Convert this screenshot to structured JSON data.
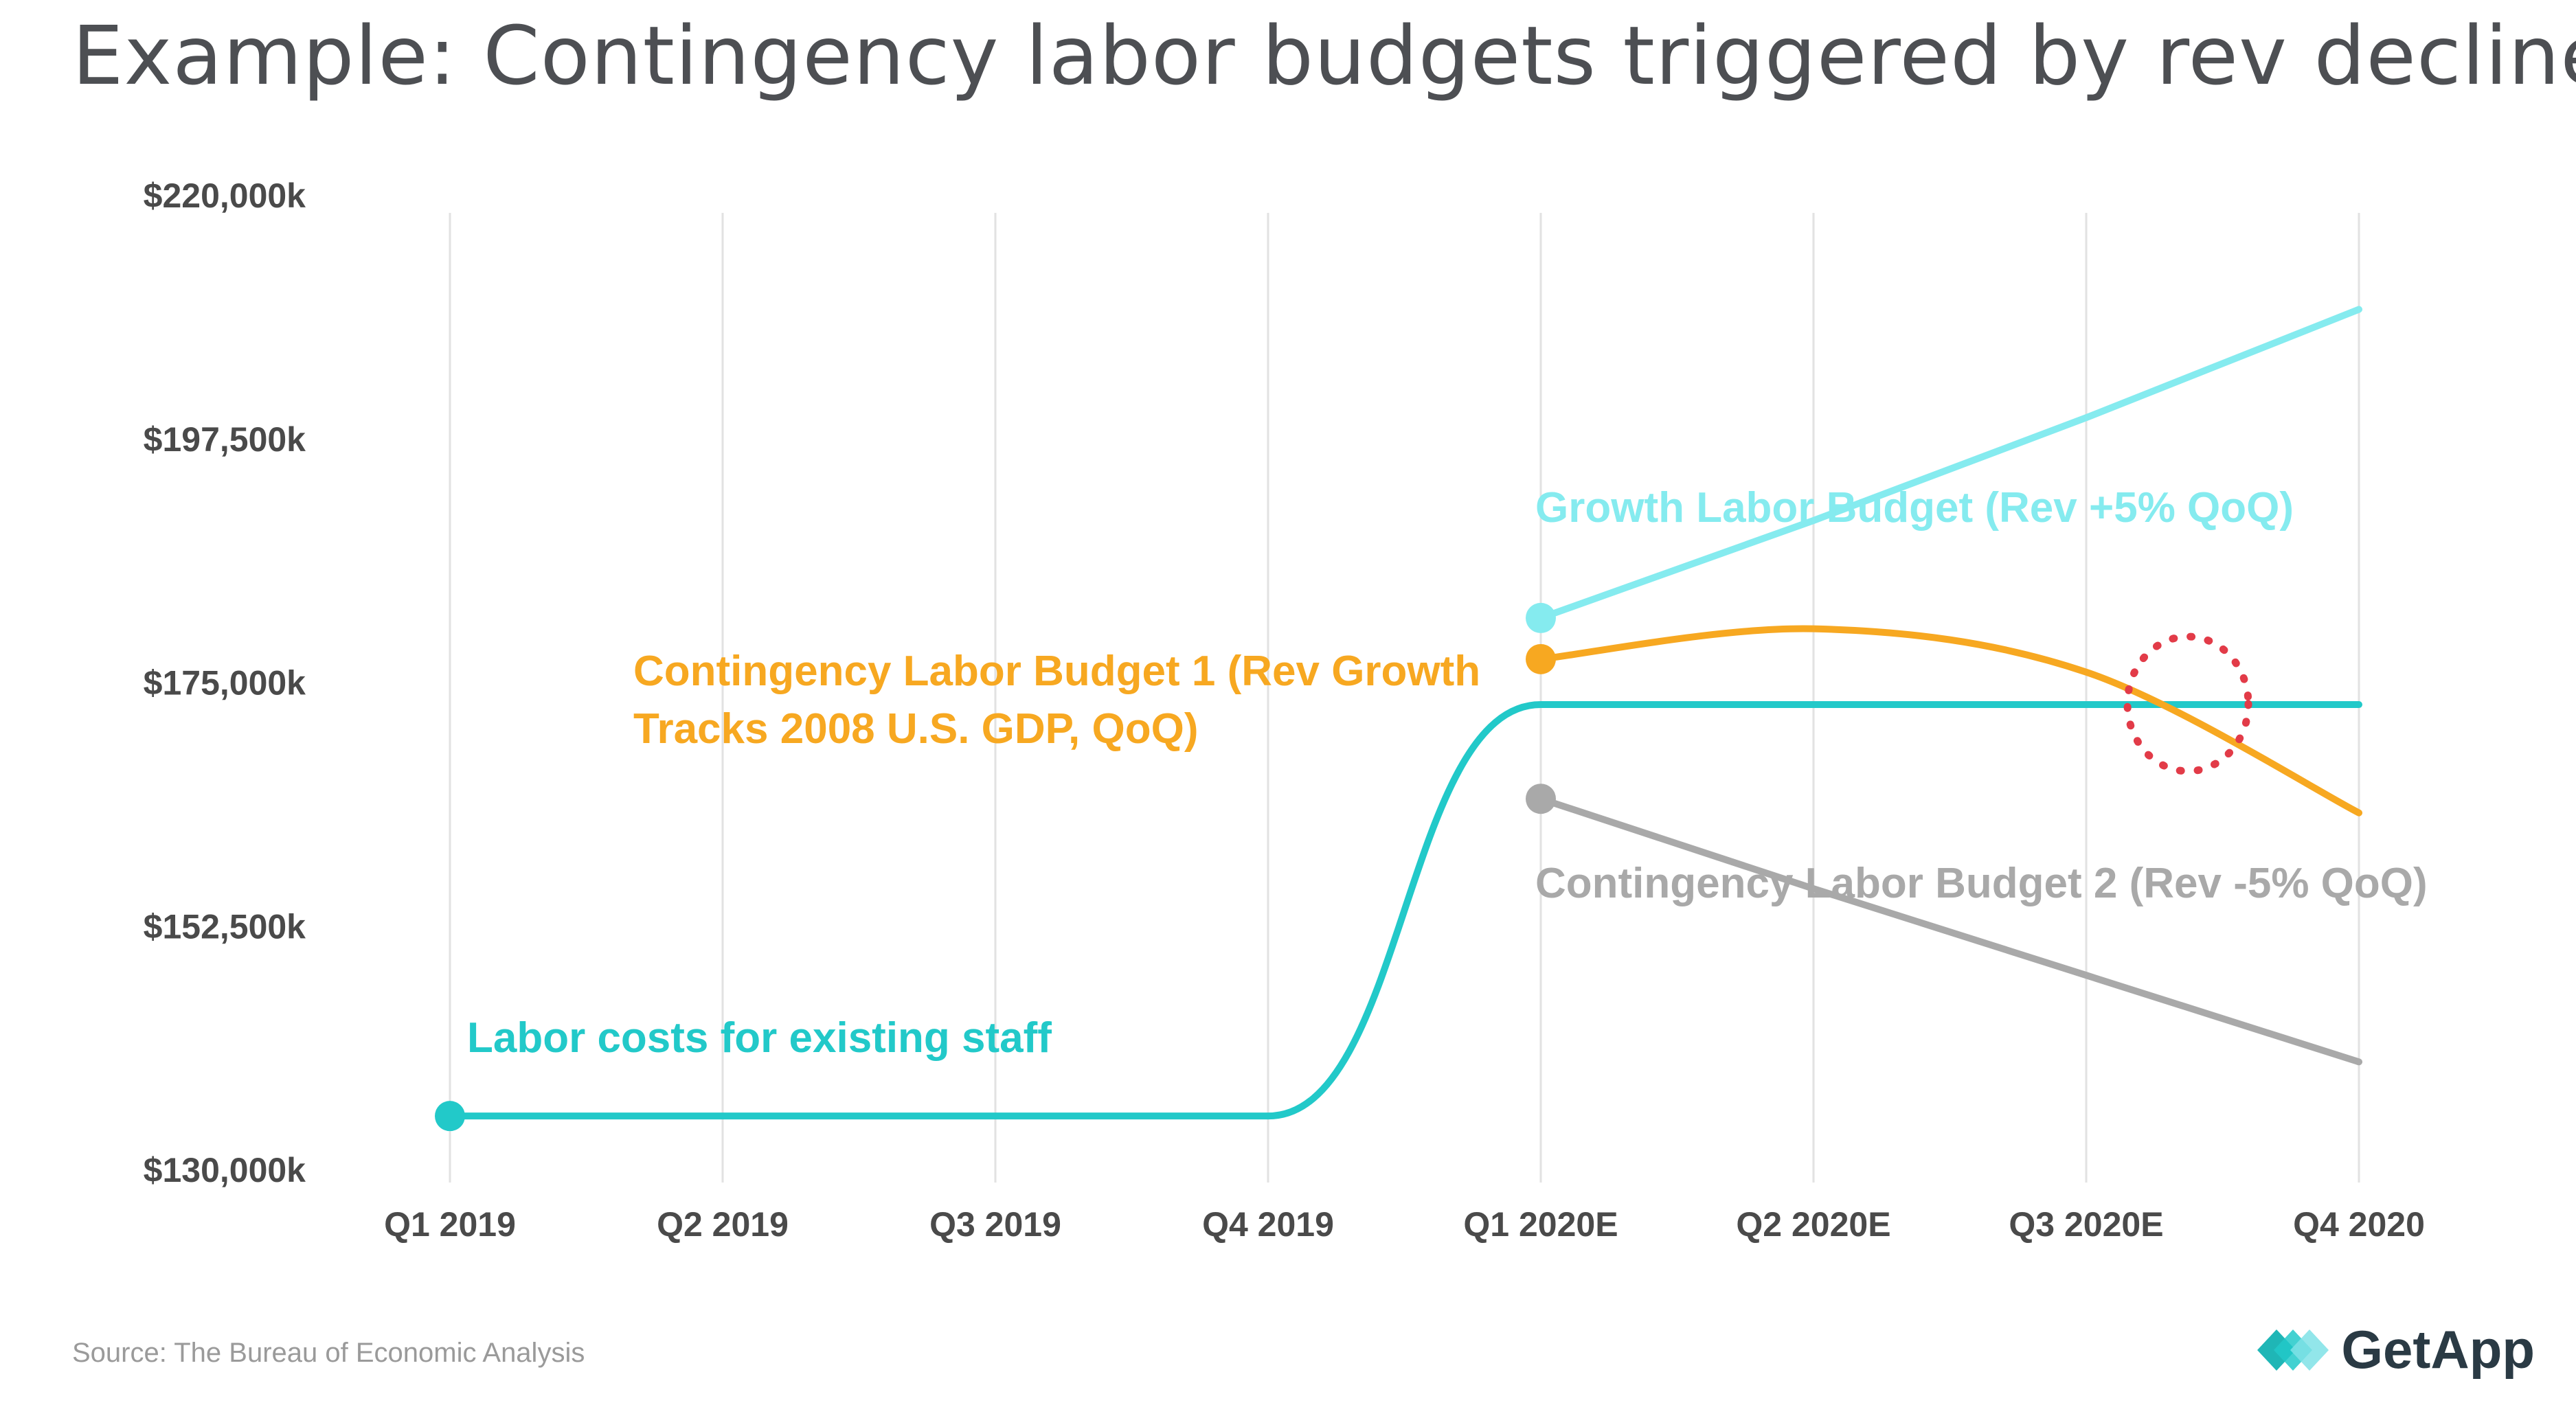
{
  "chart_data": {
    "type": "line",
    "title": "Example: Contingency labor budgets triggered by rev decline",
    "categories": [
      "Q1 2019",
      "Q2 2019",
      "Q3 2019",
      "Q4 2019",
      "Q1 2020E",
      "Q2 2020E",
      "Q3 2020E",
      "Q4 2020"
    ],
    "y_tick_labels": [
      "$220,000k",
      "$197,500k",
      "$175,000k",
      "$152,500k",
      "$130,000k"
    ],
    "ylim": [
      130000,
      220000
    ],
    "xlabel": "",
    "ylabel": "",
    "grid": "vertical",
    "series": [
      {
        "name": "Labor costs for existing staff",
        "color": "#22c9c9",
        "values": [
          135000,
          135000,
          135000,
          135000,
          173000,
          173000,
          173000,
          173000
        ],
        "label": "Labor costs for existing staff"
      },
      {
        "name": "Growth Labor Budget (Rev +5% QoQ)",
        "color": "#85ebef",
        "values": [
          null,
          null,
          null,
          null,
          181000,
          190000,
          199500,
          209500
        ],
        "label": "Growth Labor Budget (Rev +5% QoQ)"
      },
      {
        "name": "Contingency Labor Budget 1 (Rev Growth Tracks 2008 U.S. GDP, QoQ)",
        "color": "#f7a821",
        "values": [
          null,
          null,
          null,
          null,
          177200,
          180000,
          176000,
          163000
        ],
        "label_lines": [
          "Contingency Labor Budget 1 (Rev Growth",
          "Tracks 2008 U.S. GDP, QoQ)"
        ]
      },
      {
        "name": "Contingency Labor Budget 2 (Rev -5% QoQ)",
        "color": "#a9a9a9",
        "values": [
          null,
          null,
          null,
          null,
          164300,
          156000,
          148000,
          140000
        ],
        "label": "Contingency Labor Budget 2 (Rev -5% QoQ)"
      }
    ],
    "annotation": "dotted red circle marking where Contingency Labor Budget 1 crosses below existing staff labor costs",
    "highlight": {
      "x_between": [
        "Q3 2020E",
        "Q4 2020"
      ],
      "y": 173000,
      "color": "#e23b48"
    }
  },
  "source": "Source: The Bureau of Economic Analysis",
  "logo": {
    "text": "GetApp",
    "color": "#2a3a44",
    "accent": "#22c9c9"
  }
}
